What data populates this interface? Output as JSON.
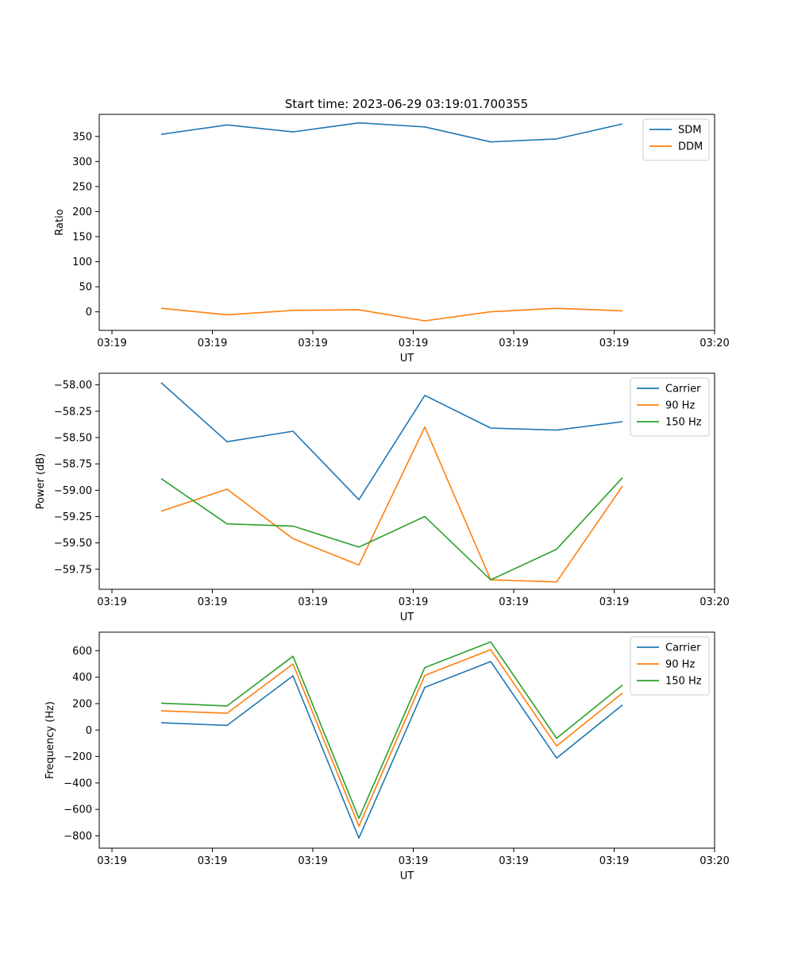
{
  "figure": {
    "title": "Start time: 2023-06-29 03:19:01.700355"
  },
  "chart_data": [
    {
      "type": "line",
      "xlabel": "UT",
      "ylabel": "Ratio",
      "x_tick_labels": [
        "03:19",
        "03:19",
        "03:19",
        "03:19",
        "03:19",
        "03:19",
        "03:20"
      ],
      "ylim": [
        -37,
        394
      ],
      "yticks": [
        0,
        50,
        100,
        150,
        200,
        250,
        300,
        350
      ],
      "ytick_format": 0,
      "legend_position": "top-right",
      "series": [
        {
          "name": "SDM",
          "color": "#1f77b4",
          "values": [
            354,
            373,
            359,
            377,
            369,
            339,
            345,
            375
          ]
        },
        {
          "name": "DDM",
          "color": "#ff7f0e",
          "values": [
            7,
            -6,
            3,
            4,
            -18,
            0,
            7,
            2
          ]
        }
      ]
    },
    {
      "type": "line",
      "xlabel": "UT",
      "ylabel": "Power (dB)",
      "x_tick_labels": [
        "03:19",
        "03:19",
        "03:19",
        "03:19",
        "03:19",
        "03:19",
        "03:20"
      ],
      "ylim": [
        -59.94,
        -57.89
      ],
      "yticks": [
        -58.0,
        -58.25,
        -58.5,
        -58.75,
        -59.0,
        -59.25,
        -59.5,
        -59.75
      ],
      "ytick_format": 2,
      "ytick_minus": "−",
      "legend_position": "top-right",
      "series": [
        {
          "name": "Carrier",
          "color": "#1f77b4",
          "values": [
            -57.98,
            -58.54,
            -58.44,
            -59.09,
            -58.1,
            -58.41,
            -58.43,
            -58.35
          ]
        },
        {
          "name": "90 Hz",
          "color": "#ff7f0e",
          "values": [
            -59.2,
            -58.99,
            -59.46,
            -59.71,
            -58.4,
            -59.85,
            -59.87,
            -58.96
          ]
        },
        {
          "name": "150 Hz",
          "color": "#2ca02c",
          "values": [
            -58.89,
            -59.32,
            -59.34,
            -59.54,
            -59.25,
            -59.85,
            -59.56,
            -58.88
          ]
        }
      ]
    },
    {
      "type": "line",
      "xlabel": "UT",
      "ylabel": "Frequency (Hz)",
      "x_tick_labels": [
        "03:19",
        "03:19",
        "03:19",
        "03:19",
        "03:19",
        "03:19",
        "03:20"
      ],
      "ylim": [
        -893,
        740
      ],
      "yticks": [
        -800,
        -600,
        -400,
        -200,
        0,
        200,
        400,
        600
      ],
      "ytick_format": 0,
      "ytick_minus": "−",
      "legend_position": "top-right",
      "series": [
        {
          "name": "Carrier",
          "color": "#1f77b4",
          "values": [
            55,
            35,
            410,
            -817,
            323,
            518,
            -212,
            190
          ]
        },
        {
          "name": "90 Hz",
          "color": "#ff7f0e",
          "values": [
            145,
            127,
            500,
            -727,
            413,
            608,
            -121,
            280
          ]
        },
        {
          "name": "150 Hz",
          "color": "#2ca02c",
          "values": [
            203,
            182,
            558,
            -667,
            472,
            667,
            -62,
            340
          ]
        }
      ]
    }
  ]
}
